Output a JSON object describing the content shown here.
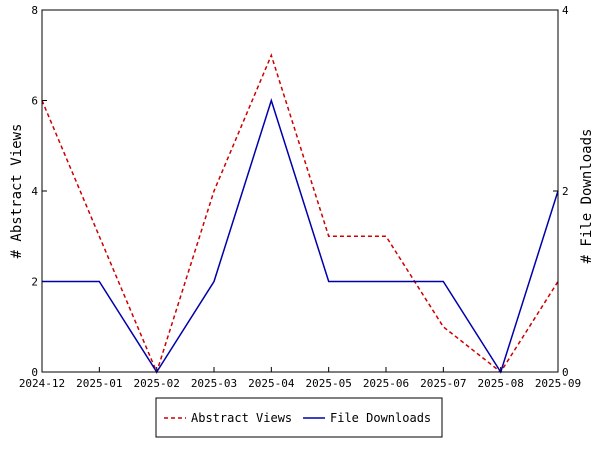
{
  "chart_data": {
    "type": "line",
    "x": [
      "2024-12",
      "2025-01",
      "2025-02",
      "2025-03",
      "2025-04",
      "2025-05",
      "2025-06",
      "2025-07",
      "2025-08",
      "2025-09"
    ],
    "series": [
      {
        "name": "Abstract Views",
        "axis": "left",
        "color": "#cc0000",
        "style": "dashed",
        "values": [
          6,
          3,
          0,
          4,
          7,
          3,
          3,
          1,
          0,
          2
        ]
      },
      {
        "name": "File Downloads",
        "axis": "right",
        "color": "#0000aa",
        "style": "solid",
        "values": [
          1,
          1,
          0,
          1,
          3,
          1,
          1,
          1,
          0,
          2
        ]
      }
    ],
    "ylabel": "# Abstract Views",
    "y2label": "# File Downloads",
    "ylim": [
      0,
      8
    ],
    "y2lim": [
      0,
      4
    ],
    "yticks": [
      "0",
      "2",
      "4",
      "6",
      "8"
    ],
    "y2ticks": [
      "0",
      "2",
      "4"
    ],
    "grid": false,
    "legend": "bottom"
  }
}
